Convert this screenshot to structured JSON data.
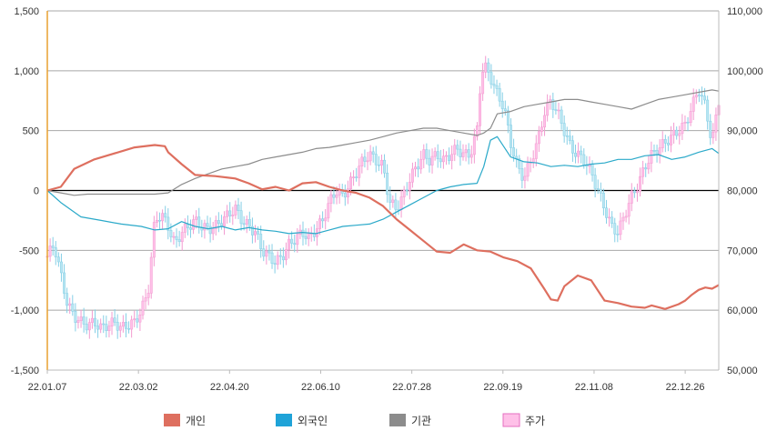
{
  "chart_data": {
    "type": "line",
    "title": "",
    "x_tick_labels": [
      "22.01.07",
      "22.03.02",
      "22.04.20",
      "22.06.10",
      "22.07.28",
      "22.09.19",
      "22.11.08",
      "22.12.26"
    ],
    "y_left": {
      "min": -1500,
      "max": 1500,
      "ticks": [
        "1,500",
        "1,000",
        "500",
        "0",
        "-500",
        "-1,000",
        "-1,500"
      ]
    },
    "y_right": {
      "min": 50000,
      "max": 110000,
      "ticks": [
        "110,000",
        "100,000",
        "90,000",
        "80,000",
        "70,000",
        "60,000",
        "50,000"
      ]
    },
    "grid": true,
    "legend_position": "bottom",
    "colors": {
      "individual": "#de6f5f",
      "foreign": "#2aa9c9",
      "institution": "#8c8c8c",
      "price": "#ffc0e8",
      "price_alt": "#b9e6f2",
      "axis_left": "#e8a030"
    },
    "legend": [
      {
        "key": "individual",
        "label": "개인",
        "color": "#de6f5f"
      },
      {
        "key": "foreign",
        "label": "외국인",
        "color": "#1fa3d8"
      },
      {
        "key": "institution",
        "label": "기관",
        "color": "#8c8c8c"
      },
      {
        "key": "price",
        "label": "주가",
        "color": "#ffc0e8"
      }
    ],
    "series": [
      {
        "key": "individual",
        "points": [
          [
            0,
            0
          ],
          [
            0.02,
            30
          ],
          [
            0.04,
            180
          ],
          [
            0.07,
            260
          ],
          [
            0.1,
            310
          ],
          [
            0.13,
            360
          ],
          [
            0.16,
            380
          ],
          [
            0.175,
            370
          ],
          [
            0.18,
            320
          ],
          [
            0.2,
            220
          ],
          [
            0.22,
            130
          ],
          [
            0.25,
            120
          ],
          [
            0.28,
            100
          ],
          [
            0.3,
            60
          ],
          [
            0.32,
            10
          ],
          [
            0.34,
            30
          ],
          [
            0.36,
            0
          ],
          [
            0.38,
            60
          ],
          [
            0.4,
            70
          ],
          [
            0.42,
            30
          ],
          [
            0.44,
            0
          ],
          [
            0.46,
            -20
          ],
          [
            0.48,
            -60
          ],
          [
            0.5,
            -130
          ],
          [
            0.52,
            -240
          ],
          [
            0.54,
            -330
          ],
          [
            0.56,
            -420
          ],
          [
            0.58,
            -510
          ],
          [
            0.6,
            -520
          ],
          [
            0.62,
            -450
          ],
          [
            0.64,
            -500
          ],
          [
            0.66,
            -510
          ],
          [
            0.68,
            -560
          ],
          [
            0.7,
            -590
          ],
          [
            0.72,
            -650
          ],
          [
            0.74,
            -820
          ],
          [
            0.75,
            -910
          ],
          [
            0.76,
            -920
          ],
          [
            0.77,
            -800
          ],
          [
            0.79,
            -710
          ],
          [
            0.81,
            -750
          ],
          [
            0.83,
            -920
          ],
          [
            0.85,
            -940
          ],
          [
            0.87,
            -970
          ],
          [
            0.89,
            -980
          ],
          [
            0.9,
            -960
          ],
          [
            0.92,
            -990
          ],
          [
            0.94,
            -950
          ],
          [
            0.95,
            -920
          ],
          [
            0.96,
            -870
          ],
          [
            0.97,
            -830
          ],
          [
            0.98,
            -810
          ],
          [
            0.99,
            -820
          ],
          [
            1.0,
            -790
          ]
        ]
      },
      {
        "key": "foreign",
        "points": [
          [
            0,
            0
          ],
          [
            0.02,
            -100
          ],
          [
            0.05,
            -220
          ],
          [
            0.08,
            -250
          ],
          [
            0.11,
            -280
          ],
          [
            0.14,
            -300
          ],
          [
            0.16,
            -330
          ],
          [
            0.18,
            -320
          ],
          [
            0.2,
            -260
          ],
          [
            0.22,
            -300
          ],
          [
            0.24,
            -320
          ],
          [
            0.26,
            -300
          ],
          [
            0.28,
            -330
          ],
          [
            0.3,
            -310
          ],
          [
            0.32,
            -330
          ],
          [
            0.34,
            -340
          ],
          [
            0.36,
            -360
          ],
          [
            0.38,
            -350
          ],
          [
            0.4,
            -360
          ],
          [
            0.42,
            -330
          ],
          [
            0.44,
            -300
          ],
          [
            0.46,
            -290
          ],
          [
            0.48,
            -280
          ],
          [
            0.5,
            -240
          ],
          [
            0.52,
            -180
          ],
          [
            0.54,
            -120
          ],
          [
            0.56,
            -60
          ],
          [
            0.58,
            0
          ],
          [
            0.6,
            30
          ],
          [
            0.62,
            50
          ],
          [
            0.64,
            60
          ],
          [
            0.65,
            200
          ],
          [
            0.66,
            420
          ],
          [
            0.67,
            450
          ],
          [
            0.69,
            280
          ],
          [
            0.71,
            240
          ],
          [
            0.73,
            230
          ],
          [
            0.75,
            200
          ],
          [
            0.77,
            210
          ],
          [
            0.79,
            200
          ],
          [
            0.81,
            220
          ],
          [
            0.83,
            230
          ],
          [
            0.85,
            260
          ],
          [
            0.87,
            260
          ],
          [
            0.89,
            290
          ],
          [
            0.91,
            300
          ],
          [
            0.93,
            260
          ],
          [
            0.95,
            280
          ],
          [
            0.97,
            320
          ],
          [
            0.99,
            350
          ],
          [
            1.0,
            310
          ]
        ]
      },
      {
        "key": "institution",
        "points": [
          [
            0,
            0
          ],
          [
            0.02,
            -20
          ],
          [
            0.04,
            -40
          ],
          [
            0.06,
            -30
          ],
          [
            0.08,
            -30
          ],
          [
            0.1,
            -30
          ],
          [
            0.12,
            -30
          ],
          [
            0.14,
            -30
          ],
          [
            0.16,
            -30
          ],
          [
            0.18,
            -20
          ],
          [
            0.2,
            50
          ],
          [
            0.22,
            100
          ],
          [
            0.24,
            140
          ],
          [
            0.26,
            180
          ],
          [
            0.28,
            200
          ],
          [
            0.3,
            220
          ],
          [
            0.32,
            260
          ],
          [
            0.34,
            280
          ],
          [
            0.36,
            300
          ],
          [
            0.38,
            320
          ],
          [
            0.4,
            350
          ],
          [
            0.42,
            360
          ],
          [
            0.44,
            380
          ],
          [
            0.46,
            400
          ],
          [
            0.48,
            420
          ],
          [
            0.5,
            450
          ],
          [
            0.52,
            480
          ],
          [
            0.54,
            500
          ],
          [
            0.56,
            520
          ],
          [
            0.58,
            520
          ],
          [
            0.6,
            500
          ],
          [
            0.62,
            480
          ],
          [
            0.64,
            460
          ],
          [
            0.65,
            480
          ],
          [
            0.66,
            520
          ],
          [
            0.67,
            640
          ],
          [
            0.69,
            660
          ],
          [
            0.71,
            700
          ],
          [
            0.73,
            720
          ],
          [
            0.75,
            740
          ],
          [
            0.77,
            760
          ],
          [
            0.79,
            760
          ],
          [
            0.81,
            740
          ],
          [
            0.83,
            720
          ],
          [
            0.85,
            700
          ],
          [
            0.87,
            680
          ],
          [
            0.89,
            720
          ],
          [
            0.91,
            760
          ],
          [
            0.93,
            780
          ],
          [
            0.95,
            800
          ],
          [
            0.97,
            820
          ],
          [
            0.99,
            840
          ],
          [
            1.0,
            830
          ]
        ]
      },
      {
        "key": "price",
        "points": [
          [
            0,
            69000
          ],
          [
            0.01,
            71000
          ],
          [
            0.02,
            66000
          ],
          [
            0.03,
            61000
          ],
          [
            0.04,
            59000
          ],
          [
            0.05,
            58000
          ],
          [
            0.06,
            57500
          ],
          [
            0.07,
            58000
          ],
          [
            0.08,
            57000
          ],
          [
            0.09,
            57500
          ],
          [
            0.1,
            58000
          ],
          [
            0.11,
            57000
          ],
          [
            0.12,
            57500
          ],
          [
            0.13,
            58000
          ],
          [
            0.14,
            60000
          ],
          [
            0.15,
            63000
          ],
          [
            0.16,
            75000
          ],
          [
            0.17,
            76000
          ],
          [
            0.18,
            74000
          ],
          [
            0.19,
            71000
          ],
          [
            0.2,
            73000
          ],
          [
            0.21,
            74000
          ],
          [
            0.22,
            75000
          ],
          [
            0.23,
            74000
          ],
          [
            0.24,
            73500
          ],
          [
            0.25,
            74000
          ],
          [
            0.26,
            75000
          ],
          [
            0.27,
            76000
          ],
          [
            0.28,
            77000
          ],
          [
            0.29,
            75000
          ],
          [
            0.3,
            74000
          ],
          [
            0.31,
            73000
          ],
          [
            0.32,
            70000
          ],
          [
            0.33,
            69000
          ],
          [
            0.34,
            68000
          ],
          [
            0.35,
            69000
          ],
          [
            0.36,
            71000
          ],
          [
            0.37,
            72000
          ],
          [
            0.38,
            73000
          ],
          [
            0.39,
            72000
          ],
          [
            0.4,
            73500
          ],
          [
            0.41,
            75000
          ],
          [
            0.42,
            78000
          ],
          [
            0.43,
            80000
          ],
          [
            0.44,
            79000
          ],
          [
            0.45,
            81000
          ],
          [
            0.46,
            83000
          ],
          [
            0.47,
            85000
          ],
          [
            0.48,
            86000
          ],
          [
            0.49,
            85000
          ],
          [
            0.5,
            84000
          ],
          [
            0.51,
            78000
          ],
          [
            0.52,
            77000
          ],
          [
            0.53,
            79000
          ],
          [
            0.54,
            82000
          ],
          [
            0.55,
            84000
          ],
          [
            0.56,
            86000
          ],
          [
            0.57,
            85000
          ],
          [
            0.58,
            86000
          ],
          [
            0.59,
            85000
          ],
          [
            0.6,
            86000
          ],
          [
            0.61,
            87000
          ],
          [
            0.62,
            86000
          ],
          [
            0.63,
            86000
          ],
          [
            0.64,
            90000
          ],
          [
            0.645,
            98000
          ],
          [
            0.65,
            101000
          ],
          [
            0.66,
            99000
          ],
          [
            0.67,
            96000
          ],
          [
            0.68,
            94000
          ],
          [
            0.69,
            88000
          ],
          [
            0.7,
            84000
          ],
          [
            0.71,
            82000
          ],
          [
            0.72,
            85000
          ],
          [
            0.73,
            88000
          ],
          [
            0.74,
            93000
          ],
          [
            0.75,
            95000
          ],
          [
            0.76,
            93000
          ],
          [
            0.77,
            90000
          ],
          [
            0.78,
            87000
          ],
          [
            0.79,
            86000
          ],
          [
            0.8,
            85000
          ],
          [
            0.81,
            83000
          ],
          [
            0.82,
            80000
          ],
          [
            0.83,
            77000
          ],
          [
            0.84,
            74000
          ],
          [
            0.85,
            73000
          ],
          [
            0.86,
            76000
          ],
          [
            0.87,
            79000
          ],
          [
            0.88,
            81000
          ],
          [
            0.89,
            84000
          ],
          [
            0.9,
            86000
          ],
          [
            0.91,
            87000
          ],
          [
            0.92,
            88000
          ],
          [
            0.93,
            89000
          ],
          [
            0.94,
            90000
          ],
          [
            0.95,
            91000
          ],
          [
            0.96,
            94000
          ],
          [
            0.97,
            97000
          ],
          [
            0.98,
            94000
          ],
          [
            0.99,
            88000
          ],
          [
            1.0,
            95000
          ]
        ]
      }
    ]
  }
}
